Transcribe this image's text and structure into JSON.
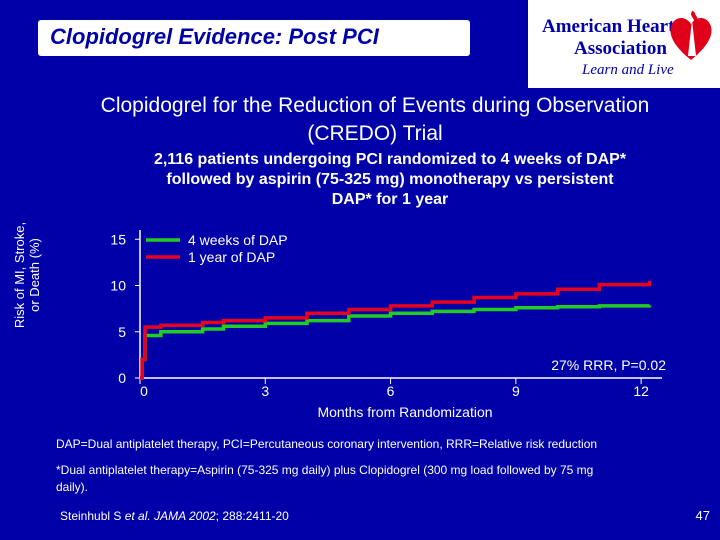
{
  "slide": {
    "title": "Clopidogrel Evidence: Post PCI",
    "subtitle_line1": "Clopidogrel for the Reduction of Events during Observation",
    "subtitle_line2": "(CREDO) Trial",
    "design_line1": "2,116 patients undergoing PCI randomized to 4 weeks of DAP*",
    "design_line2": "followed by aspirin (75-325 mg) monotherapy vs persistent",
    "design_line3": "DAP* for 1 year",
    "footnote1": "DAP=Dual antiplatelet therapy, PCI=Percutaneous coronary intervention, RRR=Relative risk reduction",
    "footnote2_line1": "*Dual antiplatelet therapy=Aspirin (75-325 mg daily) plus Clopidogrel (300 mg load followed by 75 mg",
    "footnote2_line2": "daily).",
    "citation_prefix": "Steinhubl S ",
    "citation_etal": "et al.",
    "citation_journal": "JAMA 2002",
    "citation_rest": "; 288:2411-20",
    "page_number": "47"
  },
  "logo": {
    "line1": "American Heart",
    "line2": "Association",
    "tagline": "Learn and Live",
    "colors": {
      "text": "#0000a8",
      "heart": "#e0001a"
    }
  },
  "chart_data": {
    "type": "line",
    "ylabel_line1": "Risk of MI, Stroke,",
    "ylabel_line2": "or Death (%)",
    "xlabel": "Months from Randomization",
    "xlim": [
      0,
      12.5
    ],
    "ylim": [
      0,
      16
    ],
    "x_ticks": [
      "0",
      "3",
      "6",
      "9",
      "12"
    ],
    "y_ticks": [
      "0",
      "5",
      "10",
      "15"
    ],
    "annotation": "27% RRR, P=0.02",
    "series": [
      {
        "name": "4 weeks of DAP",
        "color": "#22cc22",
        "points": [
          [
            0,
            0
          ],
          [
            0.05,
            2.0
          ],
          [
            0.12,
            4.6
          ],
          [
            0.5,
            5.0
          ],
          [
            1.5,
            5.3
          ],
          [
            2.0,
            5.6
          ],
          [
            3.0,
            5.9
          ],
          [
            4.0,
            6.2
          ],
          [
            5.0,
            6.7
          ],
          [
            6.0,
            7.0
          ],
          [
            7.0,
            7.2
          ],
          [
            8.0,
            7.4
          ],
          [
            9.0,
            7.6
          ],
          [
            10.0,
            7.7
          ],
          [
            11.0,
            7.8
          ],
          [
            12.2,
            7.85
          ]
        ]
      },
      {
        "name": "1 year of DAP",
        "color": "#e8001c",
        "points": [
          [
            0,
            0
          ],
          [
            0.05,
            2.0
          ],
          [
            0.12,
            5.5
          ],
          [
            0.5,
            5.7
          ],
          [
            1.5,
            6.0
          ],
          [
            2.0,
            6.2
          ],
          [
            3.0,
            6.5
          ],
          [
            4.0,
            7.0
          ],
          [
            5.0,
            7.4
          ],
          [
            6.0,
            7.8
          ],
          [
            7.0,
            8.2
          ],
          [
            8.0,
            8.7
          ],
          [
            9.0,
            9.1
          ],
          [
            10.0,
            9.6
          ],
          [
            11.0,
            10.1
          ],
          [
            12.2,
            10.5
          ]
        ]
      }
    ]
  }
}
